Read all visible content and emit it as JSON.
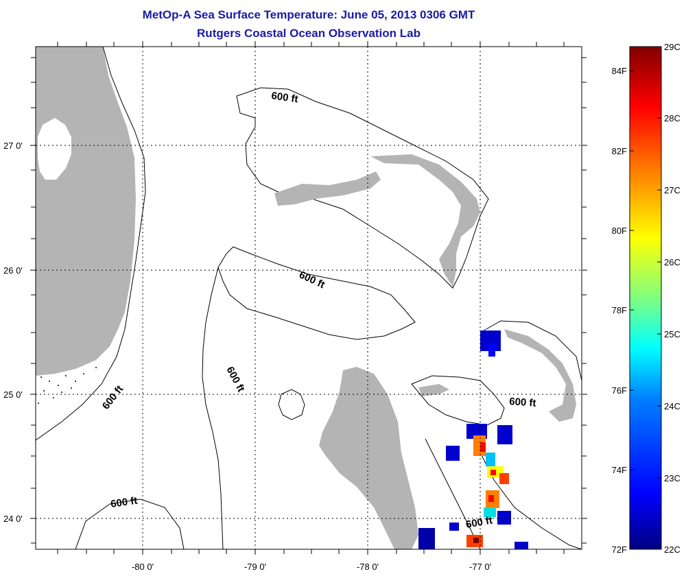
{
  "title": "MetOp-A Sea Surface Temperature:  June 05, 2013 0306 GMT",
  "subtitle": "Rutgers Coastal Ocean Observation Lab",
  "map": {
    "lat_ticks": [
      "27 0'",
      "26 0'",
      "25 0'",
      "24 0'"
    ],
    "lon_ticks": [
      "-80 0'",
      "-79 0'",
      "-78 0'",
      "-77 0'"
    ],
    "contour_labels": [
      "600 ft",
      "600 ft",
      "600 ft",
      "600 ft",
      "600 ft",
      "600 ft"
    ],
    "land_color": "#b4b4b4"
  },
  "colorbar": {
    "celsius_labels": [
      "29C",
      "28C",
      "27C",
      "26C",
      "25C",
      "24C",
      "23C",
      "22C"
    ],
    "fahrenheit_labels": [
      "84F",
      "82F",
      "80F",
      "78F",
      "76F",
      "74F",
      "72F"
    ],
    "colors": [
      "#800000",
      "#ff0000",
      "#ff8000",
      "#ffff00",
      "#80ff80",
      "#00ffff",
      "#0080ff",
      "#0000ff",
      "#000080"
    ]
  }
}
